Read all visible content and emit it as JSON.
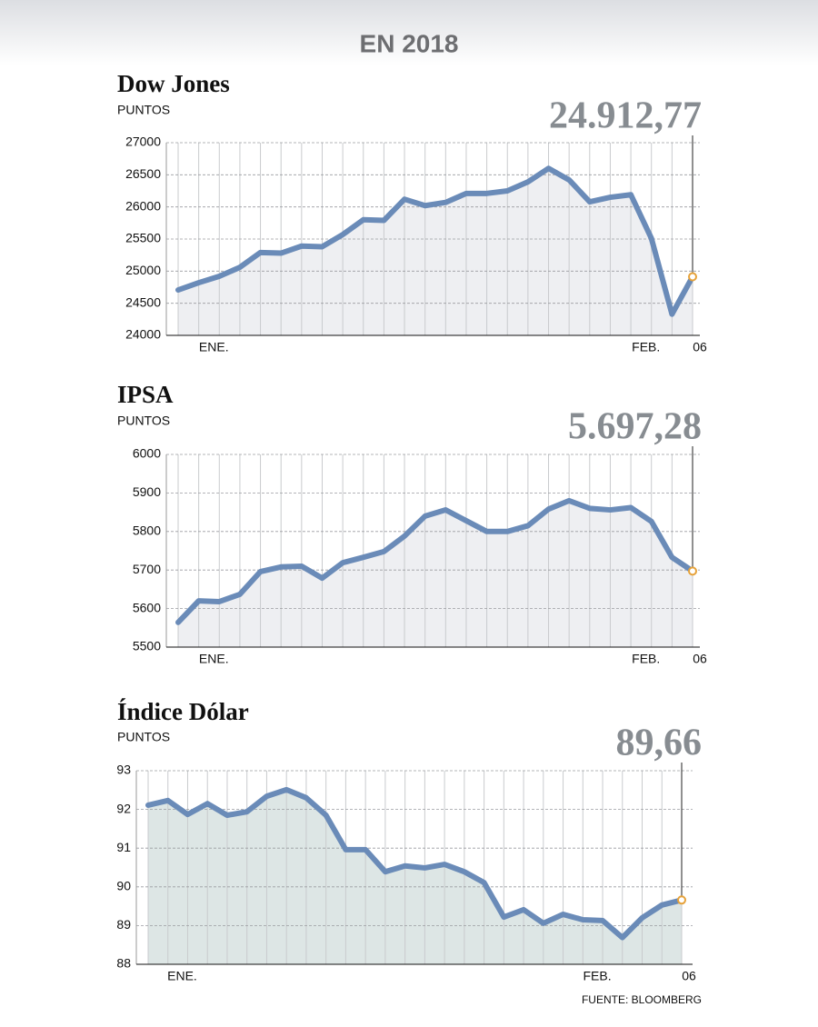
{
  "title": "EN 2018",
  "source": "FUENTE: BLOOMBERG",
  "chart_data": [
    {
      "type": "line",
      "title": "Dow Jones",
      "subtitle": "PUNTOS",
      "color": "#6a8bb8",
      "fill_color": "#eeeff2",
      "categories": [
        null,
        null,
        "ENE.",
        null,
        null,
        null,
        null,
        null,
        null,
        null,
        null,
        null,
        null,
        null,
        null,
        null,
        null,
        null,
        null,
        null,
        null,
        null,
        null,
        "FEB.",
        null,
        "06"
      ],
      "values": [
        24707,
        24820,
        24920,
        25060,
        25290,
        25280,
        25390,
        25380,
        25570,
        25800,
        25790,
        26120,
        26020,
        26070,
        26210,
        26210,
        26250,
        26390,
        26600,
        26420,
        26080,
        26150,
        26190,
        25510,
        24330,
        24912.77
      ],
      "value_labels": [
        null,
        null,
        null,
        null,
        null,
        null,
        null,
        null,
        null,
        null,
        null,
        null,
        null,
        null,
        null,
        null,
        null,
        null,
        null,
        null,
        null,
        null,
        null,
        null,
        null,
        "24.912,77"
      ],
      "ylim": [
        24000,
        27000
      ],
      "yticks": [
        24000,
        24500,
        25000,
        25500,
        26000,
        26500,
        27000
      ],
      "grid": true
    },
    {
      "type": "line",
      "title": "IPSA",
      "subtitle": "PUNTOS",
      "color": "#6a8bb8",
      "fill_color": "#eeeff2",
      "categories": [
        null,
        null,
        "ENE.",
        null,
        null,
        null,
        null,
        null,
        null,
        null,
        null,
        null,
        null,
        null,
        null,
        null,
        null,
        null,
        null,
        null,
        null,
        null,
        null,
        "FEB.",
        null,
        "06"
      ],
      "values": [
        5564,
        5620,
        5618,
        5637,
        5696,
        5708,
        5710,
        5679,
        5719,
        5733,
        5748,
        5788,
        5840,
        5856,
        5828,
        5800,
        5800,
        5815,
        5858,
        5880,
        5860,
        5856,
        5862,
        5826,
        5733,
        5697.28
      ],
      "value_labels": [
        null,
        null,
        null,
        null,
        null,
        null,
        null,
        null,
        null,
        null,
        null,
        null,
        null,
        null,
        null,
        null,
        null,
        null,
        null,
        null,
        null,
        null,
        null,
        null,
        null,
        "5.697,28"
      ],
      "ylim": [
        5500,
        6000
      ],
      "yticks": [
        5500,
        5600,
        5700,
        5800,
        5900,
        6000
      ],
      "grid": true
    },
    {
      "type": "line",
      "title": "Índice Dólar",
      "subtitle": "PUNTOS",
      "color": "#6a8bb8",
      "fill_color": "#dde6e5",
      "categories": [
        null,
        null,
        "ENE.",
        null,
        null,
        null,
        null,
        null,
        null,
        null,
        null,
        null,
        null,
        null,
        null,
        null,
        null,
        null,
        null,
        null,
        null,
        null,
        null,
        "FEB.",
        null,
        null,
        null,
        "06"
      ],
      "values": [
        92.11,
        92.23,
        91.87,
        92.15,
        91.85,
        91.94,
        92.34,
        92.51,
        92.3,
        91.85,
        90.96,
        90.96,
        90.39,
        90.54,
        90.49,
        90.58,
        90.39,
        90.11,
        89.22,
        89.41,
        89.06,
        89.29,
        89.15,
        89.13,
        88.69,
        89.2,
        89.53,
        89.66
      ],
      "value_labels": [
        null,
        null,
        null,
        null,
        null,
        null,
        null,
        null,
        null,
        null,
        null,
        null,
        null,
        null,
        null,
        null,
        null,
        null,
        null,
        null,
        null,
        null,
        null,
        null,
        null,
        null,
        null,
        "89,66"
      ],
      "ylim": [
        88,
        93
      ],
      "yticks": [
        88,
        89,
        90,
        91,
        92,
        93
      ],
      "grid": true
    }
  ]
}
